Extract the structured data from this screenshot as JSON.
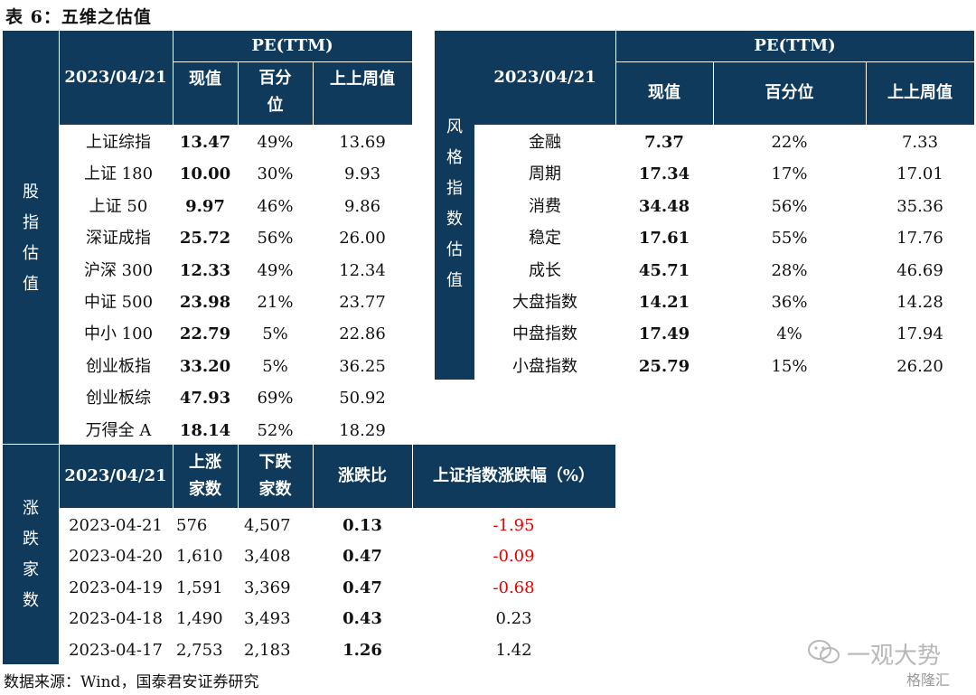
{
  "title": "表 6：五维之估值",
  "footer": "数据来源：Wind，国泰君安证券研究",
  "watermark": {
    "main": "一观大势",
    "brand": "格隆汇"
  },
  "stock_index": {
    "side_label": [
      "股",
      "指",
      "估",
      "值"
    ],
    "date": "2023/04/21",
    "group_header": "PE(TTM)",
    "col_current": "现值",
    "col_percentile": [
      "百分",
      "位"
    ],
    "col_prev": "上上周值",
    "rows": [
      {
        "name": "上证综指",
        "current": "13.47",
        "pct": "49%",
        "prev": "13.69"
      },
      {
        "name": "上证 180",
        "current": "10.00",
        "pct": "30%",
        "prev": "9.93"
      },
      {
        "name": "上证 50",
        "current": "9.97",
        "pct": "46%",
        "prev": "9.86"
      },
      {
        "name": "深证成指",
        "current": "25.72",
        "pct": "56%",
        "prev": "26.00"
      },
      {
        "name": "沪深 300",
        "current": "12.33",
        "pct": "49%",
        "prev": "12.34"
      },
      {
        "name": "中证 500",
        "current": "23.98",
        "pct": "21%",
        "prev": "23.77"
      },
      {
        "name": "中小 100",
        "current": "22.79",
        "pct": "5%",
        "prev": "22.86"
      },
      {
        "name": "创业板指",
        "current": "33.20",
        "pct": "5%",
        "prev": "36.25"
      },
      {
        "name": "创业板综",
        "current": "47.93",
        "pct": "69%",
        "prev": "50.92"
      },
      {
        "name": "万得全 A",
        "current": "18.14",
        "pct": "52%",
        "prev": "18.29"
      }
    ]
  },
  "style_index": {
    "side_label": [
      "风",
      "格",
      "指",
      "数",
      "估",
      "值"
    ],
    "date": "2023/04/21",
    "group_header": "PE(TTM)",
    "col_current": "现值",
    "col_percentile": "百分位",
    "col_prev": "上上周值",
    "rows": [
      {
        "name": "金融",
        "current": "7.37",
        "pct": "22%",
        "prev": "7.33"
      },
      {
        "name": "周期",
        "current": "17.34",
        "pct": "17%",
        "prev": "17.01"
      },
      {
        "name": "消费",
        "current": "34.48",
        "pct": "56%",
        "prev": "35.36"
      },
      {
        "name": "稳定",
        "current": "17.61",
        "pct": "55%",
        "prev": "17.76"
      },
      {
        "name": "成长",
        "current": "45.71",
        "pct": "28%",
        "prev": "46.69"
      },
      {
        "name": "大盘指数",
        "current": "14.21",
        "pct": "36%",
        "prev": "14.28"
      },
      {
        "name": "中盘指数",
        "current": "17.49",
        "pct": "4%",
        "prev": "17.94"
      },
      {
        "name": "小盘指数",
        "current": "25.79",
        "pct": "15%",
        "prev": "26.20"
      }
    ]
  },
  "advance_decline": {
    "side_label": [
      "涨",
      "跌",
      "家",
      "数"
    ],
    "date": "2023/04/21",
    "col_up": [
      "上涨",
      "家数"
    ],
    "col_down": [
      "下跌",
      "家数"
    ],
    "col_ratio": "涨跌比",
    "col_change": "上证指数涨跌幅（%）",
    "rows": [
      {
        "date": "2023-04-21",
        "up": "576",
        "down": "4,507",
        "ratio": "0.13",
        "change": "-1.95",
        "neg": true
      },
      {
        "date": "2023-04-20",
        "up": "1,610",
        "down": "3,408",
        "ratio": "0.47",
        "change": "-0.09",
        "neg": true
      },
      {
        "date": "2023-04-19",
        "up": "1,591",
        "down": "3,369",
        "ratio": "0.47",
        "change": "-0.68",
        "neg": true
      },
      {
        "date": "2023-04-18",
        "up": "1,490",
        "down": "3,493",
        "ratio": "0.43",
        "change": "0.23",
        "neg": false
      },
      {
        "date": "2023-04-17",
        "up": "2,753",
        "down": "2,183",
        "ratio": "1.26",
        "change": "1.42",
        "neg": false
      }
    ]
  }
}
